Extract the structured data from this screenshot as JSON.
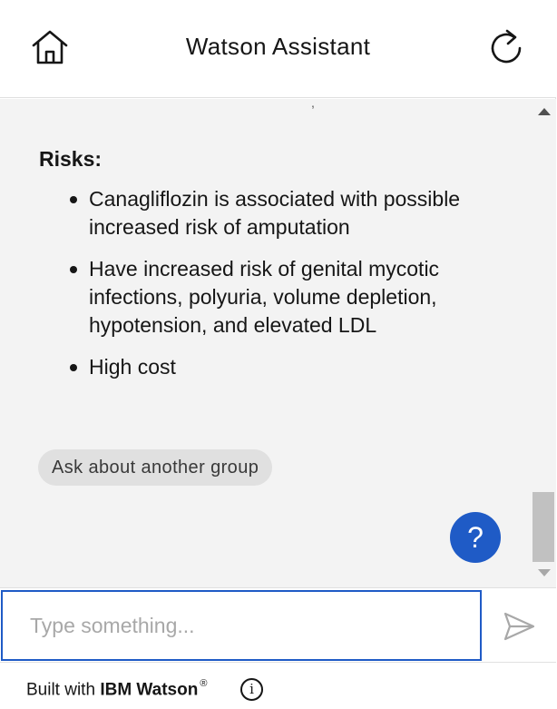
{
  "header": {
    "title": "Watson Assistant",
    "home_icon": "home-icon",
    "restart_icon": "restart-icon"
  },
  "messages": {
    "clipped_fragment": ",",
    "risks_heading": "Risks:",
    "risks": [
      "Canagliflozin is associated with possible increased risk of amputation",
      "Have increased risk of genital mycotic infections, polyuria, volume depletion, hypotension, and elevated LDL",
      "High cost"
    ],
    "option_chip": "Ask about another group",
    "help_button": "?"
  },
  "input": {
    "placeholder": "Type something...",
    "value": "",
    "send_icon": "send-icon"
  },
  "footer": {
    "prefix": "Built with",
    "brand": "IBM Watson",
    "trademark": "®",
    "info_label": "i"
  },
  "colors": {
    "accent": "#1f5bc6",
    "message_bg": "#f3f3f3",
    "chip_bg": "#e0e0e0"
  }
}
